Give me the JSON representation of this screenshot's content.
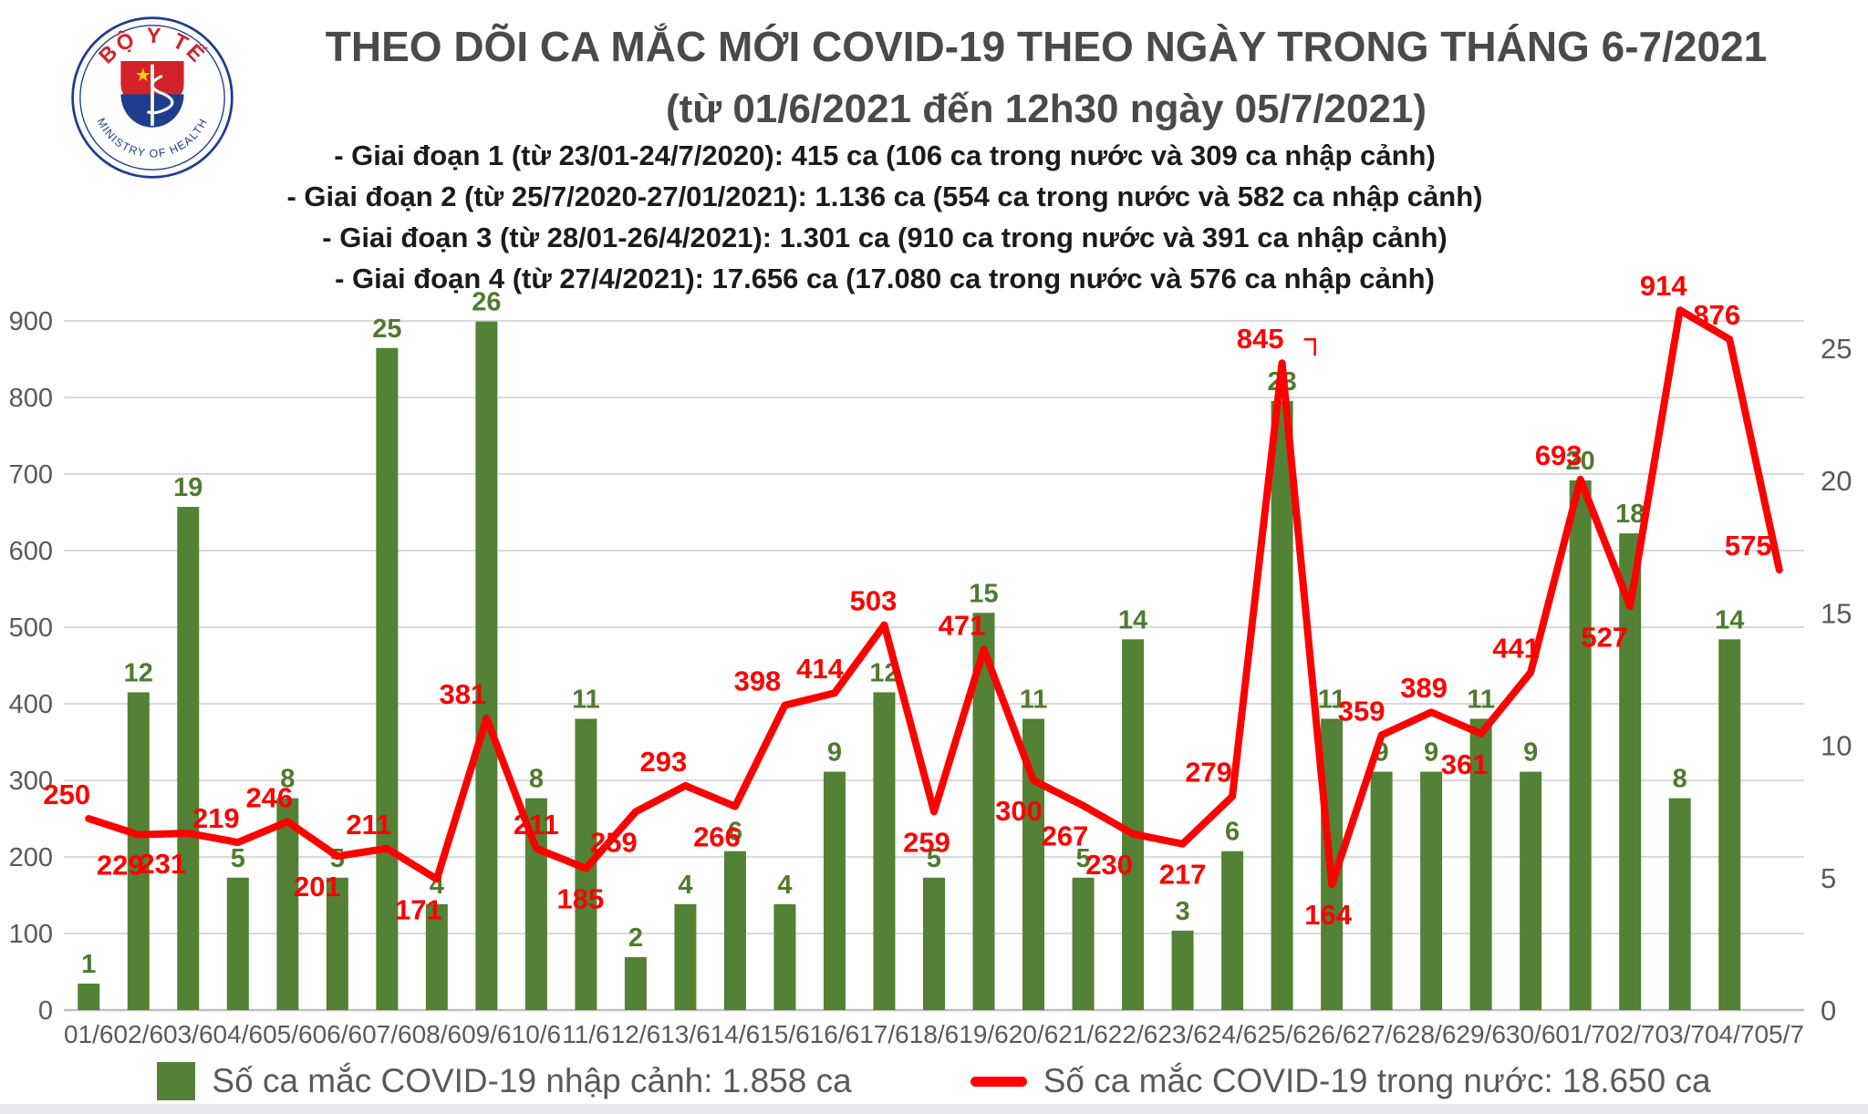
{
  "colors": {
    "bar": "#538135",
    "bar_label": "#4e7b2e",
    "line": "#ff0000",
    "axis": "#595959",
    "grid": "#d9d9d9",
    "title": "#4a4a4a",
    "phase": "#1b1b1b",
    "legend": "#595959",
    "logo_blue": "#1e3d8f",
    "logo_red": "#d2232a",
    "star": "#ffd200"
  },
  "logo": {
    "top_text": "BỘ Y TẾ",
    "bottom_text": "MINISTRY OF HEALTH"
  },
  "header": {
    "title_line1": "THEO DÕI CA MẮC MỚI COVID-19 THEO NGÀY TRONG THÁNG 6-7/2021",
    "title_line2": "(từ 01/6/2021 đến 12h30 ngày 05/7/2021)",
    "phases": [
      "- Giai đoạn 1 (từ 23/01-24/7/2020): 415 ca (106 ca trong nước và 309 ca nhập cảnh)",
      "- Giai đoạn 2 (từ 25/7/2020-27/01/2021): 1.136 ca (554 ca trong nước và 582 ca nhập cảnh)",
      "- Giai đoạn 3 (từ 28/01-26/4/2021): 1.301 ca (910 ca trong nước và 391 ca nhập cảnh)",
      "- Giai đoạn 4 (từ 27/4/2021): 17.656 ca (17.080 ca trong nước và 576 ca nhập cảnh)"
    ]
  },
  "legend": {
    "imported_label": "Số ca mắc COVID-19 nhập cảnh: 1.858 ca",
    "domestic_label": "Số ca mắc COVID-19 trong nước: 18.650 ca"
  },
  "chart_data": {
    "type": "bar",
    "subtype": "bar+line-combo",
    "grid": true,
    "categories": [
      "01/6",
      "02/6",
      "03/6",
      "04/6",
      "05/6",
      "06/6",
      "07/6",
      "08/6",
      "09/6",
      "10/6",
      "11/6",
      "12/6",
      "13/6",
      "14/6",
      "15/6",
      "16/6",
      "17/6",
      "18/6",
      "19/6",
      "20/6",
      "21/6",
      "22/6",
      "23/6",
      "24/6",
      "25/6",
      "26/6",
      "27/6",
      "28/6",
      "29/6",
      "30/6",
      "01/7",
      "02/7",
      "03/7",
      "04/7",
      "05/7"
    ],
    "series": [
      {
        "name": "Số ca mắc COVID-19 nhập cảnh",
        "type": "bar",
        "axis": "right",
        "color": "#538135",
        "values": [
          1,
          12,
          19,
          5,
          8,
          5,
          25,
          4,
          26,
          8,
          11,
          2,
          4,
          6,
          4,
          9,
          12,
          5,
          15,
          11,
          5,
          14,
          3,
          6,
          23,
          11,
          9,
          9,
          11,
          9,
          20,
          18,
          8,
          14,
          0
        ]
      },
      {
        "name": "Số ca mắc COVID-19 trong nước",
        "type": "line",
        "axis": "left",
        "color": "#ff0000",
        "values": [
          250,
          229,
          231,
          219,
          246,
          201,
          211,
          171,
          381,
          211,
          185,
          259,
          293,
          266,
          398,
          414,
          503,
          259,
          471,
          300,
          267,
          230,
          217,
          279,
          845,
          164,
          359,
          389,
          361,
          441,
          693,
          527,
          914,
          876,
          575
        ]
      }
    ],
    "left_axis": {
      "min": 0,
      "max": 900,
      "step": 100
    },
    "right_axis": {
      "ticks": [
        0,
        5,
        10,
        15,
        20,
        25
      ]
    },
    "line_label_pos": [
      {
        "pos": "above",
        "dx": -24
      },
      {
        "pos": "below",
        "dx": -20
      },
      {
        "pos": "below",
        "dx": -28
      },
      {
        "pos": "above",
        "dx": -24
      },
      {
        "pos": "above",
        "dx": -20
      },
      {
        "pos": "below",
        "dx": -22
      },
      {
        "pos": "above",
        "dx": -20
      },
      {
        "pos": "below",
        "dx": -20
      },
      {
        "pos": "above",
        "dx": -26
      },
      {
        "pos": "above",
        "dx": 0
      },
      {
        "pos": "below",
        "dx": -6
      },
      {
        "pos": "below",
        "dx": -24
      },
      {
        "pos": "above",
        "dx": -24
      },
      {
        "pos": "below",
        "dx": -20
      },
      {
        "pos": "above",
        "dx": -30
      },
      {
        "pos": "above",
        "dx": -16
      },
      {
        "pos": "above",
        "dx": -12
      },
      {
        "pos": "below",
        "dx": -8
      },
      {
        "pos": "above",
        "dx": -24
      },
      {
        "pos": "below",
        "dx": -16
      },
      {
        "pos": "below",
        "dx": -20
      },
      {
        "pos": "below",
        "dx": -26
      },
      {
        "pos": "below",
        "dx": 0
      },
      {
        "pos": "above",
        "dx": -26
      },
      {
        "pos": "above",
        "dx": -24,
        "leader": true
      },
      {
        "pos": "below",
        "dx": -4
      },
      {
        "pos": "above",
        "dx": -22
      },
      {
        "pos": "above",
        "dx": -8
      },
      {
        "pos": "below",
        "dx": -18
      },
      {
        "pos": "above",
        "dx": -16
      },
      {
        "pos": "above",
        "dx": -24
      },
      {
        "pos": "below",
        "dx": -28
      },
      {
        "pos": "above",
        "dx": -18
      },
      {
        "pos": "above",
        "dx": -14
      },
      {
        "pos": "above",
        "dx": -34
      }
    ]
  }
}
